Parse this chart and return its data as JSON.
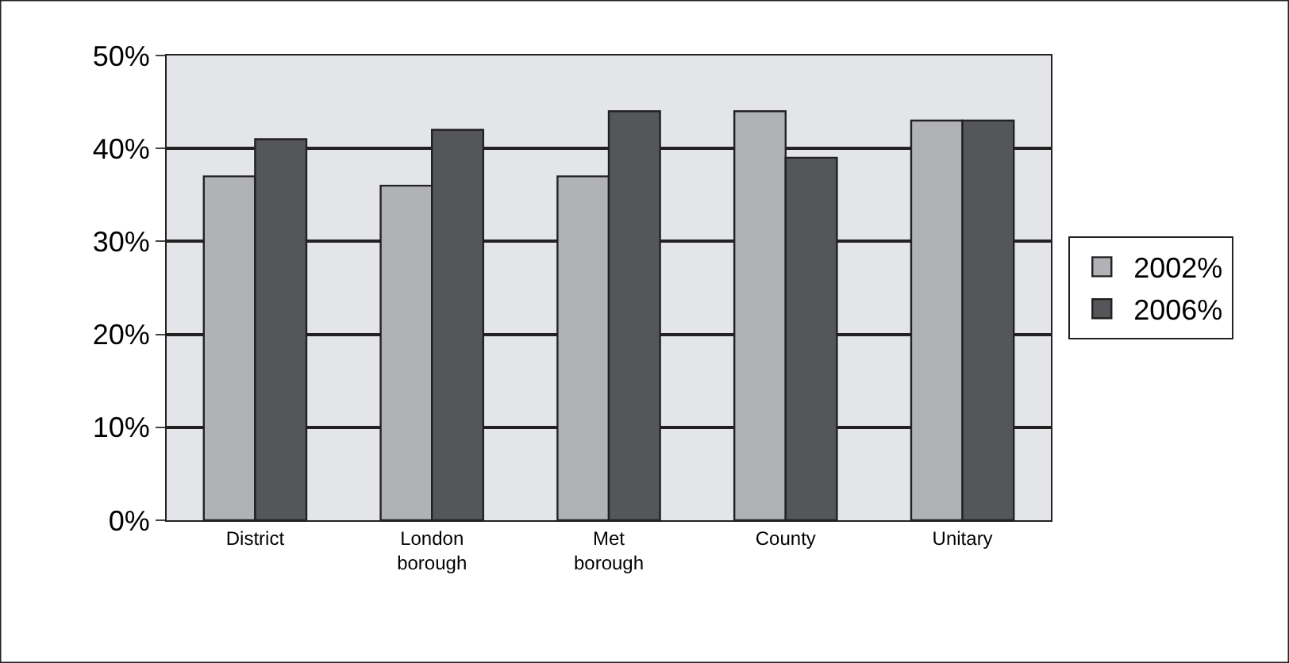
{
  "chart_data": {
    "type": "bar",
    "categories": [
      "District",
      "London borough",
      "Met borough",
      "County",
      "Unitary"
    ],
    "series": [
      {
        "name": "2002%",
        "color": "#b1b2b6",
        "values": [
          37,
          36,
          37,
          44,
          43
        ]
      },
      {
        "name": "2006%",
        "color": "#555659",
        "values": [
          41,
          42,
          44,
          39,
          43
        ]
      }
    ],
    "ylim": [
      0,
      50
    ],
    "yticks": [
      {
        "value": 0,
        "label": "0%"
      },
      {
        "value": 10,
        "label": "10%"
      },
      {
        "value": 20,
        "label": "20%"
      },
      {
        "value": 30,
        "label": "30%"
      },
      {
        "value": 40,
        "label": "40%"
      },
      {
        "value": 50,
        "label": "50%"
      }
    ],
    "grid": "y",
    "legend": "right"
  }
}
